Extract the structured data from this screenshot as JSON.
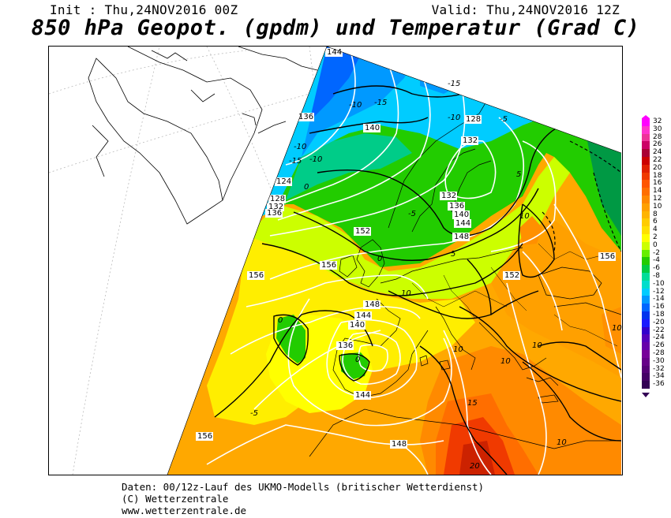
{
  "header": {
    "init": "Init : Thu,24NOV2016 00Z",
    "valid": "Valid: Thu,24NOV2016 12Z",
    "title": "850 hPa Geopot. (gpdm) und Temperatur (Grad C)"
  },
  "legend": {
    "levels": [
      {
        "label": "32",
        "color": "#ff00ff"
      },
      {
        "label": "30",
        "color": "#ff33cc"
      },
      {
        "label": "28",
        "color": "#ee3399"
      },
      {
        "label": "26",
        "color": "#cc0066"
      },
      {
        "label": "24",
        "color": "#aa0033"
      },
      {
        "label": "22",
        "color": "#cc0000"
      },
      {
        "label": "20",
        "color": "#e02000"
      },
      {
        "label": "18",
        "color": "#f03a00"
      },
      {
        "label": "16",
        "color": "#ff5500"
      },
      {
        "label": "14",
        "color": "#ff6e00"
      },
      {
        "label": "12",
        "color": "#ff8800"
      },
      {
        "label": "10",
        "color": "#ffa000"
      },
      {
        "label": "8",
        "color": "#ffb400"
      },
      {
        "label": "6",
        "color": "#ffcc00"
      },
      {
        "label": "4",
        "color": "#ffe000"
      },
      {
        "label": "2",
        "color": "#ffff00"
      },
      {
        "label": "0",
        "color": "#ccff00"
      },
      {
        "label": "-2",
        "color": "#66ee00"
      },
      {
        "label": "-4",
        "color": "#22cc00"
      },
      {
        "label": "-6",
        "color": "#00cc44"
      },
      {
        "label": "-8",
        "color": "#00dd99"
      },
      {
        "label": "-10",
        "color": "#00ddcc"
      },
      {
        "label": "-12",
        "color": "#00ccff"
      },
      {
        "label": "-14",
        "color": "#0099ff"
      },
      {
        "label": "-16",
        "color": "#0066ff"
      },
      {
        "label": "-18",
        "color": "#0033ee"
      },
      {
        "label": "-20",
        "color": "#1a1aff"
      },
      {
        "label": "-22",
        "color": "#3300cc"
      },
      {
        "label": "-24",
        "color": "#5500bb"
      },
      {
        "label": "-26",
        "color": "#6600aa"
      },
      {
        "label": "-28",
        "color": "#770099"
      },
      {
        "label": "-30",
        "color": "#660088"
      },
      {
        "label": "-32",
        "color": "#550077"
      },
      {
        "label": "-34",
        "color": "#440066"
      },
      {
        "label": "-36",
        "color": "#330055"
      }
    ]
  },
  "geopotential_labels": [
    "144",
    "136",
    "140",
    "128",
    "132",
    "124",
    "128",
    "132",
    "136",
    "152",
    "132",
    "136",
    "140",
    "144",
    "148",
    "156",
    "152",
    "156",
    "148",
    "144",
    "140",
    "136",
    "144",
    "156",
    "148",
    "156"
  ],
  "temperature_labels": [
    "-15",
    "-10",
    "-15",
    "-10",
    "-5",
    "-10",
    "-15",
    "-10",
    "-5",
    "0",
    "0",
    "5",
    "10",
    "5",
    "10",
    "10",
    "10",
    "10",
    "0",
    "0",
    "-5",
    "15",
    "20",
    "10",
    "10"
  ],
  "footer": {
    "line1": "Daten: 00/12z-Lauf des UKMO-Modells (britischer Wetterdienst)",
    "line2": "(C) Wetterzentrale",
    "line3": "www.wetterzentrale.de"
  }
}
